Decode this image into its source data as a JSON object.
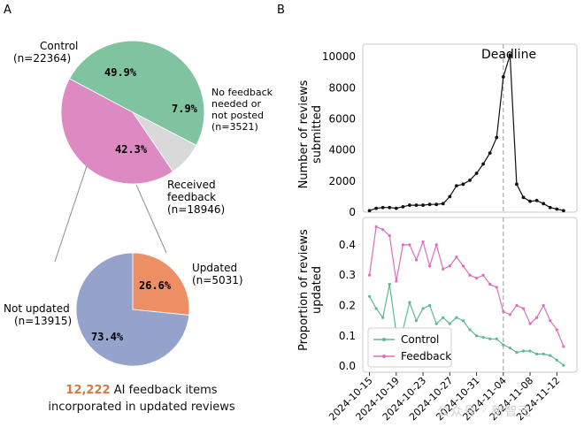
{
  "panel_labels": {
    "a": "A",
    "b": "B"
  },
  "chart_data": [
    {
      "type": "pie",
      "id": "top-pie",
      "slices": [
        {
          "label": "Control",
          "n": "(n=22364)",
          "value": 49.9,
          "pct": "49.9%",
          "color": "#7fc3a1"
        },
        {
          "label": "No feedback needed or not posted",
          "label_lines": [
            "No feedback",
            "needed or",
            "not posted"
          ],
          "n": "(n=3521)",
          "value": 7.9,
          "pct": "7.9%",
          "color": "#d9d9d9"
        },
        {
          "label": "Received feedback",
          "label_lines": [
            "Received",
            "feedback"
          ],
          "n": "(n=18946)",
          "value": 42.3,
          "pct": "42.3%",
          "color": "#dd89c2"
        }
      ]
    },
    {
      "type": "pie",
      "id": "bottom-pie",
      "slices": [
        {
          "label": "Updated",
          "n": "(n=5031)",
          "value": 26.6,
          "pct": "26.6%",
          "color": "#ee8e64"
        },
        {
          "label": "Not updated",
          "n": "(n=13915)",
          "value": 73.4,
          "pct": "73.4%",
          "color": "#95a3cb"
        }
      ]
    },
    {
      "type": "line",
      "id": "reviews-count",
      "ylabel": [
        "Number of reviews",
        "submitted"
      ],
      "ylim": [
        0,
        10800
      ],
      "yticks": [
        0,
        2000,
        4000,
        6000,
        8000,
        10000
      ],
      "x_range": [
        0,
        32
      ],
      "series": [
        {
          "name": "Reviews submitted",
          "color": "#111111",
          "values": [
            100,
            250,
            300,
            300,
            250,
            350,
            450,
            450,
            450,
            500,
            500,
            550,
            1000,
            1700,
            1800,
            2050,
            2500,
            3100,
            3800,
            4800,
            8700,
            10100,
            1800,
            950,
            700,
            750,
            550,
            300,
            200,
            100
          ]
        }
      ],
      "annotation": "Deadline",
      "deadline_x": 21
    },
    {
      "type": "line",
      "id": "proportion-updated",
      "ylabel": [
        "Proportion of reviews",
        "updated"
      ],
      "ylim": [
        -0.02,
        0.49
      ],
      "yticks": [
        0.0,
        0.1,
        0.2,
        0.3,
        0.4
      ],
      "x_range": [
        0,
        32
      ],
      "xtick_positions": [
        0,
        4,
        8,
        12,
        16,
        20,
        24,
        28
      ],
      "xtick_labels": [
        "2024-10-15",
        "2024-10-19",
        "2024-10-23",
        "2024-10-27",
        "2024-10-31",
        "2024-11-04",
        "2024-11-08",
        "2024-11-12"
      ],
      "deadline_x": 21,
      "legend": "lower-left",
      "series": [
        {
          "name": "Control",
          "color": "#5fb98f",
          "values": [
            0.23,
            0.19,
            0.16,
            0.27,
            0.11,
            0.12,
            0.21,
            0.15,
            0.19,
            0.2,
            0.14,
            0.16,
            0.14,
            0.16,
            0.15,
            0.12,
            0.1,
            0.095,
            0.09,
            0.09,
            0.07,
            0.06,
            0.045,
            0.05,
            0.05,
            0.04,
            0.04,
            0.035,
            0.02,
            0.003
          ]
        },
        {
          "name": "Feedback",
          "color": "#db6fbb",
          "values": [
            0.3,
            0.46,
            0.45,
            0.43,
            0.28,
            0.4,
            0.4,
            0.35,
            0.41,
            0.33,
            0.4,
            0.32,
            0.33,
            0.36,
            0.33,
            0.3,
            0.29,
            0.3,
            0.27,
            0.26,
            0.18,
            0.17,
            0.2,
            0.19,
            0.14,
            0.16,
            0.2,
            0.15,
            0.12,
            0.065
          ]
        }
      ]
    }
  ],
  "caption": {
    "highlight": "12,222",
    "line1_rest": " AI feedback items",
    "line2": "incorporated in updated reviews"
  },
  "watermark": "公众号 · 新智元"
}
